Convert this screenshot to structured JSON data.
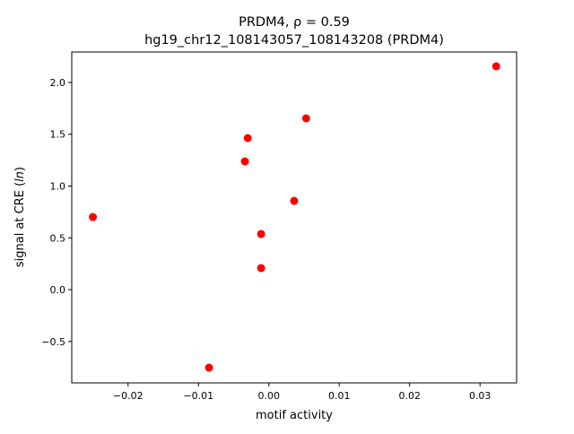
{
  "chart_data": {
    "type": "scatter",
    "title_line1": "PRDM4, ρ = 0.59",
    "title_line2": "hg19_chr12_108143057_108143208 (PRDM4)",
    "xlabel": "motif activity",
    "ylabel_prefix": "signal at CRE (",
    "ylabel_italic": "ln",
    "ylabel_suffix": ")",
    "xlim": [
      -0.028,
      0.0352
    ],
    "ylim": [
      -0.9,
      2.294
    ],
    "xticks": [
      -0.02,
      -0.01,
      0.0,
      0.01,
      0.02,
      0.03
    ],
    "xtick_labels": [
      "−0.02",
      "−0.01",
      "0.00",
      "0.01",
      "0.02",
      "0.03"
    ],
    "yticks": [
      -0.5,
      0.0,
      0.5,
      1.0,
      1.5,
      2.0
    ],
    "ytick_labels": [
      "−0.5",
      "0.0",
      "0.5",
      "1.0",
      "1.5",
      "2.0"
    ],
    "grid": false,
    "marker_color": "#ff0000",
    "points": [
      {
        "x": 0.0323,
        "y": 2.156
      },
      {
        "x": 0.0053,
        "y": 1.654
      },
      {
        "x": -0.003,
        "y": 1.463
      },
      {
        "x": -0.0034,
        "y": 1.238
      },
      {
        "x": 0.0036,
        "y": 0.857
      },
      {
        "x": -0.025,
        "y": 0.701
      },
      {
        "x": -0.0011,
        "y": 0.537
      },
      {
        "x": -0.0011,
        "y": 0.208
      },
      {
        "x": -0.0085,
        "y": -0.753
      }
    ]
  }
}
